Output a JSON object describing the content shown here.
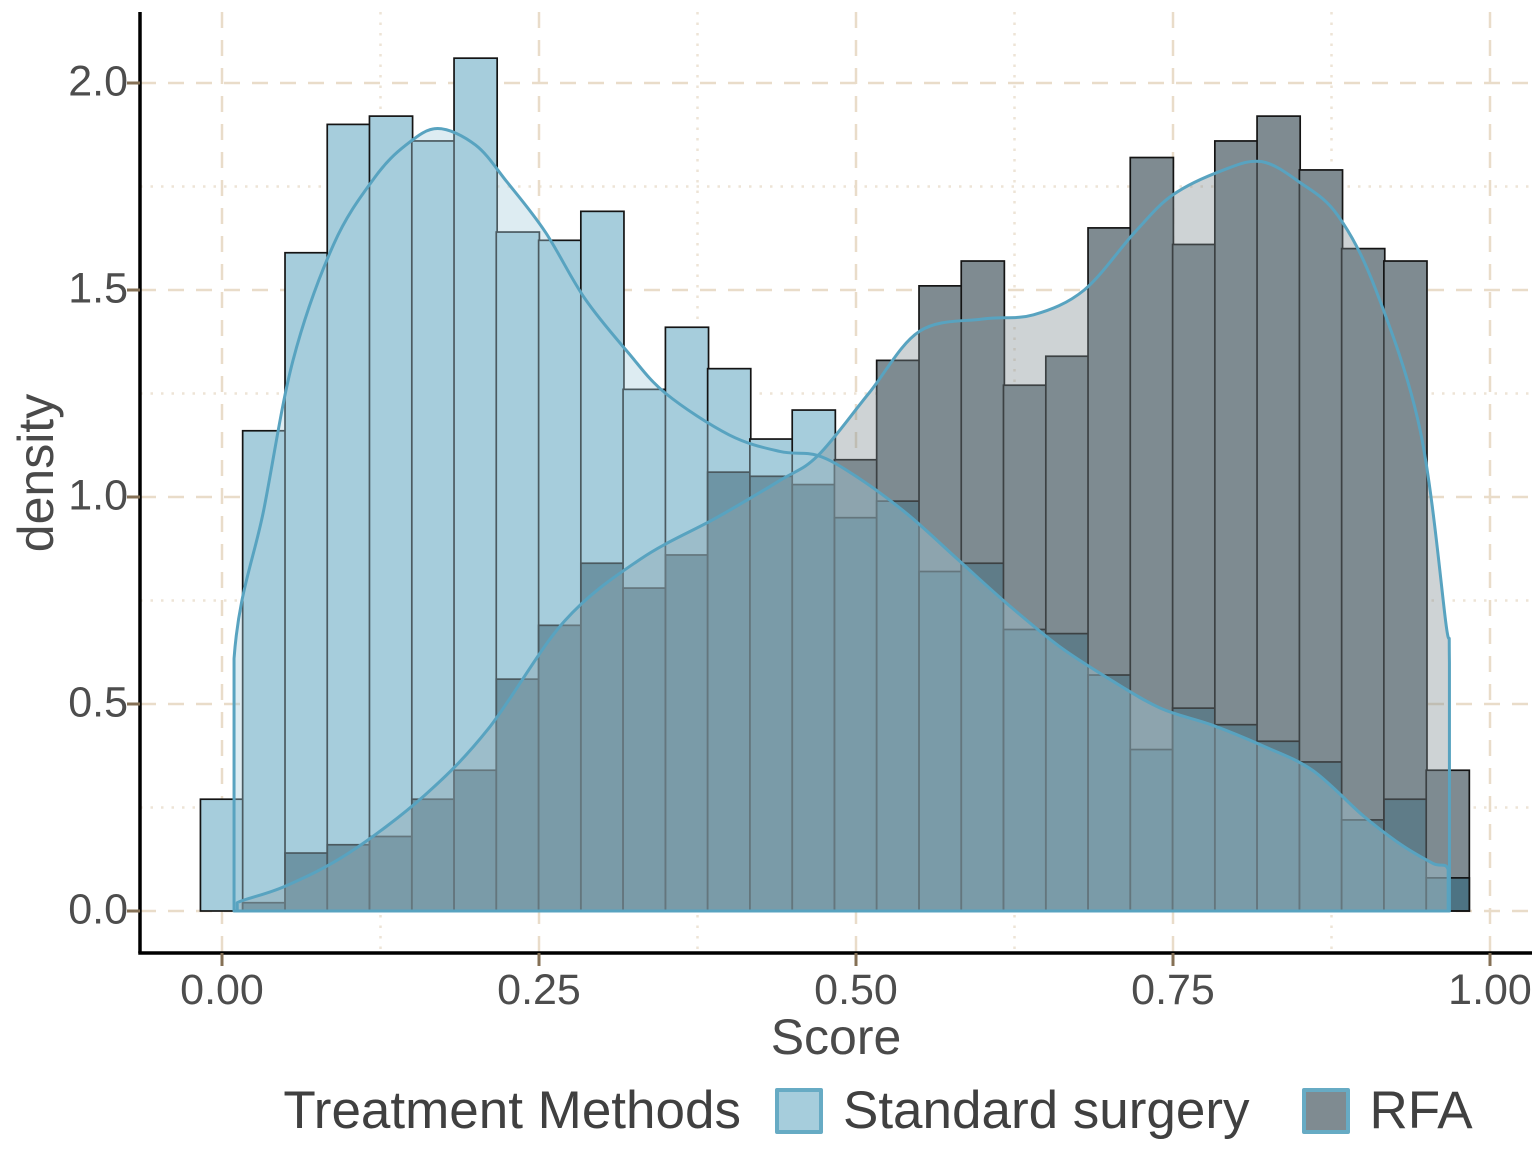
{
  "chart_data": {
    "type": "histogram",
    "subtype": "overlaid density histogram",
    "title": "",
    "xlabel": "Score",
    "ylabel": "density",
    "legend_title": "Treatment Methods",
    "legend_position": "bottom",
    "grid": "on",
    "xlim": [
      -0.05,
      1.04
    ],
    "ylim": [
      0,
      2.1
    ],
    "x_ticks": [
      {
        "v": 0.0,
        "label": "0.00"
      },
      {
        "v": 0.25,
        "label": "0.25"
      },
      {
        "v": 0.5,
        "label": "0.50"
      },
      {
        "v": 0.75,
        "label": "0.75"
      },
      {
        "v": 1.0,
        "label": "1.00"
      }
    ],
    "y_ticks": [
      {
        "v": 0.0,
        "label": "0.0"
      },
      {
        "v": 0.5,
        "label": "0.5"
      },
      {
        "v": 1.0,
        "label": "1.0"
      },
      {
        "v": 1.5,
        "label": "1.5"
      },
      {
        "v": 2.0,
        "label": "2.0"
      }
    ],
    "x_minor_ticks": [
      0.125,
      0.375,
      0.625,
      0.875
    ],
    "y_minor_ticks": [
      0.25,
      0.75,
      1.25,
      1.75
    ],
    "bin_width": 0.0333,
    "bin_centers": [
      0.0,
      0.0333,
      0.0667,
      0.1,
      0.1333,
      0.1667,
      0.2,
      0.2333,
      0.2667,
      0.3,
      0.3333,
      0.3667,
      0.4,
      0.4333,
      0.4667,
      0.5,
      0.5333,
      0.5667,
      0.6,
      0.6333,
      0.6667,
      0.7,
      0.7333,
      0.7667,
      0.8,
      0.8333,
      0.8667,
      0.9,
      0.9333,
      0.9667
    ],
    "series": [
      {
        "name": "Standard surgery",
        "bar_color": "#a6cddc",
        "heights": [
          0.27,
          1.16,
          1.59,
          1.9,
          1.92,
          1.86,
          2.06,
          1.64,
          1.62,
          1.69,
          1.26,
          1.41,
          1.31,
          1.14,
          1.21,
          0.95,
          0.99,
          0.82,
          0.84,
          0.68,
          0.67,
          0.57,
          0.39,
          0.49,
          0.45,
          0.41,
          0.36,
          0.22,
          0.27,
          0.08
        ],
        "density_curve": [
          [
            0.0095,
            0
          ],
          [
            0.0095,
            0.61
          ],
          [
            0.033,
            0.97
          ],
          [
            0.056,
            1.33
          ],
          [
            0.088,
            1.61
          ],
          [
            0.12,
            1.77
          ],
          [
            0.145,
            1.85
          ],
          [
            0.17,
            1.89
          ],
          [
            0.2,
            1.85
          ],
          [
            0.225,
            1.76
          ],
          [
            0.255,
            1.64
          ],
          [
            0.286,
            1.48
          ],
          [
            0.32,
            1.35
          ],
          [
            0.35,
            1.25
          ],
          [
            0.4,
            1.15
          ],
          [
            0.44,
            1.11
          ],
          [
            0.47,
            1.1
          ],
          [
            0.5,
            1.05
          ],
          [
            0.54,
            0.96
          ],
          [
            0.58,
            0.85
          ],
          [
            0.62,
            0.74
          ],
          [
            0.66,
            0.64
          ],
          [
            0.7,
            0.56
          ],
          [
            0.74,
            0.49
          ],
          [
            0.78,
            0.45
          ],
          [
            0.82,
            0.4
          ],
          [
            0.86,
            0.34
          ],
          [
            0.9,
            0.23
          ],
          [
            0.93,
            0.16
          ],
          [
            0.955,
            0.115
          ],
          [
            0.967,
            0.1
          ],
          [
            0.967,
            0
          ]
        ]
      },
      {
        "name": "RFA",
        "bar_color": "#7f8b91",
        "heights": [
          0,
          0.02,
          0.14,
          0.16,
          0.18,
          0.27,
          0.34,
          0.56,
          0.69,
          0.84,
          0.78,
          0.86,
          1.06,
          1.05,
          1.03,
          1.09,
          1.33,
          1.51,
          1.57,
          1.27,
          1.34,
          1.65,
          1.82,
          1.61,
          1.86,
          1.92,
          1.79,
          1.6,
          1.57,
          0.34
        ],
        "density_curve": [
          [
            0.012,
            0
          ],
          [
            0.012,
            0.02
          ],
          [
            0.05,
            0.06
          ],
          [
            0.1,
            0.14
          ],
          [
            0.16,
            0.28
          ],
          [
            0.21,
            0.44
          ],
          [
            0.27,
            0.7
          ],
          [
            0.33,
            0.85
          ],
          [
            0.39,
            0.95
          ],
          [
            0.44,
            1.04
          ],
          [
            0.47,
            1.1
          ],
          [
            0.51,
            1.25
          ],
          [
            0.55,
            1.4
          ],
          [
            0.6,
            1.43
          ],
          [
            0.64,
            1.44
          ],
          [
            0.68,
            1.5
          ],
          [
            0.72,
            1.64
          ],
          [
            0.75,
            1.73
          ],
          [
            0.79,
            1.79
          ],
          [
            0.82,
            1.81
          ],
          [
            0.85,
            1.76
          ],
          [
            0.88,
            1.68
          ],
          [
            0.91,
            1.5
          ],
          [
            0.945,
            1.16
          ],
          [
            0.965,
            0.7
          ],
          [
            0.968,
            0.6
          ],
          [
            0.968,
            0
          ]
        ]
      }
    ],
    "colors": {
      "overlap_fill": "#4d7383",
      "density_fill_alpha": 0.38,
      "curve_stroke": "#58a3c0",
      "bar_outline": "#141414",
      "grid_major": "#e9dcc9",
      "grid_minor": "#ede4d6",
      "axis_line": "#000000",
      "tick_mark": "#857055",
      "tick_text": "#4d4d4d",
      "axis_title_text": "#4a4a4a",
      "legend_text": "#404040",
      "legend_key_border": "#67abc4",
      "background": "#ffffff"
    }
  }
}
